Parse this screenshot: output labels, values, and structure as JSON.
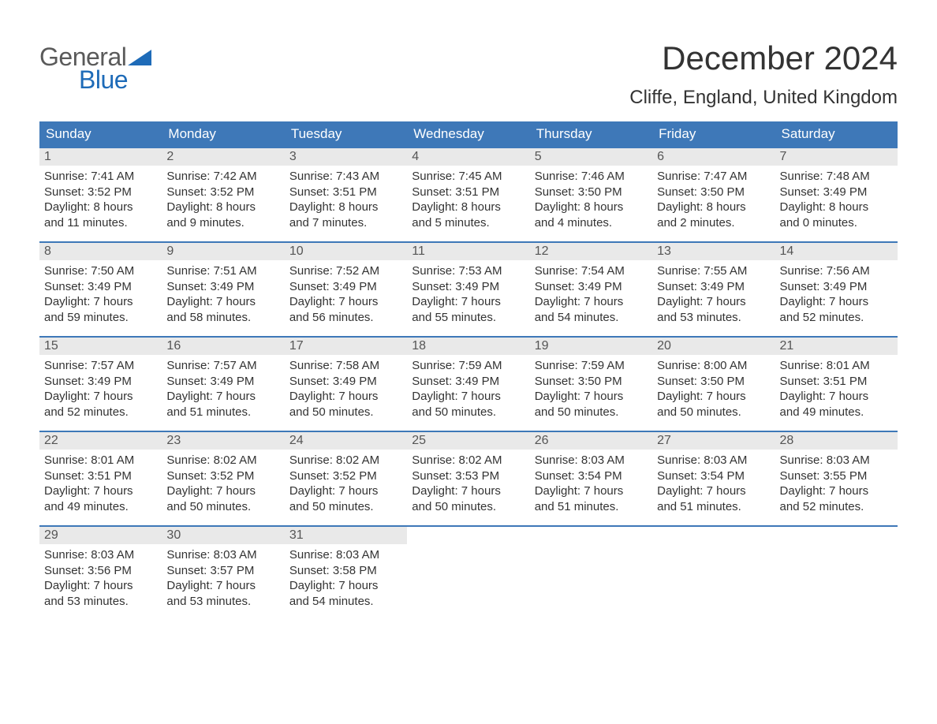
{
  "logo": {
    "word1": "General",
    "word2": "Blue"
  },
  "title": "December 2024",
  "location": "Cliffe, England, United Kingdom",
  "colors": {
    "header_bg": "#3e78b8",
    "header_text": "#ffffff",
    "daynum_bg": "#e9e9e9",
    "row_border": "#3e78b8",
    "logo_gray": "#5a5a5a",
    "logo_blue": "#1e6bb8",
    "body_text": "#333333",
    "page_bg": "#ffffff"
  },
  "day_headers": [
    "Sunday",
    "Monday",
    "Tuesday",
    "Wednesday",
    "Thursday",
    "Friday",
    "Saturday"
  ],
  "weeks": [
    [
      {
        "n": "1",
        "sr": "Sunrise: 7:41 AM",
        "ss": "Sunset: 3:52 PM",
        "d1": "Daylight: 8 hours",
        "d2": "and 11 minutes."
      },
      {
        "n": "2",
        "sr": "Sunrise: 7:42 AM",
        "ss": "Sunset: 3:52 PM",
        "d1": "Daylight: 8 hours",
        "d2": "and 9 minutes."
      },
      {
        "n": "3",
        "sr": "Sunrise: 7:43 AM",
        "ss": "Sunset: 3:51 PM",
        "d1": "Daylight: 8 hours",
        "d2": "and 7 minutes."
      },
      {
        "n": "4",
        "sr": "Sunrise: 7:45 AM",
        "ss": "Sunset: 3:51 PM",
        "d1": "Daylight: 8 hours",
        "d2": "and 5 minutes."
      },
      {
        "n": "5",
        "sr": "Sunrise: 7:46 AM",
        "ss": "Sunset: 3:50 PM",
        "d1": "Daylight: 8 hours",
        "d2": "and 4 minutes."
      },
      {
        "n": "6",
        "sr": "Sunrise: 7:47 AM",
        "ss": "Sunset: 3:50 PM",
        "d1": "Daylight: 8 hours",
        "d2": "and 2 minutes."
      },
      {
        "n": "7",
        "sr": "Sunrise: 7:48 AM",
        "ss": "Sunset: 3:49 PM",
        "d1": "Daylight: 8 hours",
        "d2": "and 0 minutes."
      }
    ],
    [
      {
        "n": "8",
        "sr": "Sunrise: 7:50 AM",
        "ss": "Sunset: 3:49 PM",
        "d1": "Daylight: 7 hours",
        "d2": "and 59 minutes."
      },
      {
        "n": "9",
        "sr": "Sunrise: 7:51 AM",
        "ss": "Sunset: 3:49 PM",
        "d1": "Daylight: 7 hours",
        "d2": "and 58 minutes."
      },
      {
        "n": "10",
        "sr": "Sunrise: 7:52 AM",
        "ss": "Sunset: 3:49 PM",
        "d1": "Daylight: 7 hours",
        "d2": "and 56 minutes."
      },
      {
        "n": "11",
        "sr": "Sunrise: 7:53 AM",
        "ss": "Sunset: 3:49 PM",
        "d1": "Daylight: 7 hours",
        "d2": "and 55 minutes."
      },
      {
        "n": "12",
        "sr": "Sunrise: 7:54 AM",
        "ss": "Sunset: 3:49 PM",
        "d1": "Daylight: 7 hours",
        "d2": "and 54 minutes."
      },
      {
        "n": "13",
        "sr": "Sunrise: 7:55 AM",
        "ss": "Sunset: 3:49 PM",
        "d1": "Daylight: 7 hours",
        "d2": "and 53 minutes."
      },
      {
        "n": "14",
        "sr": "Sunrise: 7:56 AM",
        "ss": "Sunset: 3:49 PM",
        "d1": "Daylight: 7 hours",
        "d2": "and 52 minutes."
      }
    ],
    [
      {
        "n": "15",
        "sr": "Sunrise: 7:57 AM",
        "ss": "Sunset: 3:49 PM",
        "d1": "Daylight: 7 hours",
        "d2": "and 52 minutes."
      },
      {
        "n": "16",
        "sr": "Sunrise: 7:57 AM",
        "ss": "Sunset: 3:49 PM",
        "d1": "Daylight: 7 hours",
        "d2": "and 51 minutes."
      },
      {
        "n": "17",
        "sr": "Sunrise: 7:58 AM",
        "ss": "Sunset: 3:49 PM",
        "d1": "Daylight: 7 hours",
        "d2": "and 50 minutes."
      },
      {
        "n": "18",
        "sr": "Sunrise: 7:59 AM",
        "ss": "Sunset: 3:49 PM",
        "d1": "Daylight: 7 hours",
        "d2": "and 50 minutes."
      },
      {
        "n": "19",
        "sr": "Sunrise: 7:59 AM",
        "ss": "Sunset: 3:50 PM",
        "d1": "Daylight: 7 hours",
        "d2": "and 50 minutes."
      },
      {
        "n": "20",
        "sr": "Sunrise: 8:00 AM",
        "ss": "Sunset: 3:50 PM",
        "d1": "Daylight: 7 hours",
        "d2": "and 50 minutes."
      },
      {
        "n": "21",
        "sr": "Sunrise: 8:01 AM",
        "ss": "Sunset: 3:51 PM",
        "d1": "Daylight: 7 hours",
        "d2": "and 49 minutes."
      }
    ],
    [
      {
        "n": "22",
        "sr": "Sunrise: 8:01 AM",
        "ss": "Sunset: 3:51 PM",
        "d1": "Daylight: 7 hours",
        "d2": "and 49 minutes."
      },
      {
        "n": "23",
        "sr": "Sunrise: 8:02 AM",
        "ss": "Sunset: 3:52 PM",
        "d1": "Daylight: 7 hours",
        "d2": "and 50 minutes."
      },
      {
        "n": "24",
        "sr": "Sunrise: 8:02 AM",
        "ss": "Sunset: 3:52 PM",
        "d1": "Daylight: 7 hours",
        "d2": "and 50 minutes."
      },
      {
        "n": "25",
        "sr": "Sunrise: 8:02 AM",
        "ss": "Sunset: 3:53 PM",
        "d1": "Daylight: 7 hours",
        "d2": "and 50 minutes."
      },
      {
        "n": "26",
        "sr": "Sunrise: 8:03 AM",
        "ss": "Sunset: 3:54 PM",
        "d1": "Daylight: 7 hours",
        "d2": "and 51 minutes."
      },
      {
        "n": "27",
        "sr": "Sunrise: 8:03 AM",
        "ss": "Sunset: 3:54 PM",
        "d1": "Daylight: 7 hours",
        "d2": "and 51 minutes."
      },
      {
        "n": "28",
        "sr": "Sunrise: 8:03 AM",
        "ss": "Sunset: 3:55 PM",
        "d1": "Daylight: 7 hours",
        "d2": "and 52 minutes."
      }
    ],
    [
      {
        "n": "29",
        "sr": "Sunrise: 8:03 AM",
        "ss": "Sunset: 3:56 PM",
        "d1": "Daylight: 7 hours",
        "d2": "and 53 minutes."
      },
      {
        "n": "30",
        "sr": "Sunrise: 8:03 AM",
        "ss": "Sunset: 3:57 PM",
        "d1": "Daylight: 7 hours",
        "d2": "and 53 minutes."
      },
      {
        "n": "31",
        "sr": "Sunrise: 8:03 AM",
        "ss": "Sunset: 3:58 PM",
        "d1": "Daylight: 7 hours",
        "d2": "and 54 minutes."
      },
      null,
      null,
      null,
      null
    ]
  ]
}
